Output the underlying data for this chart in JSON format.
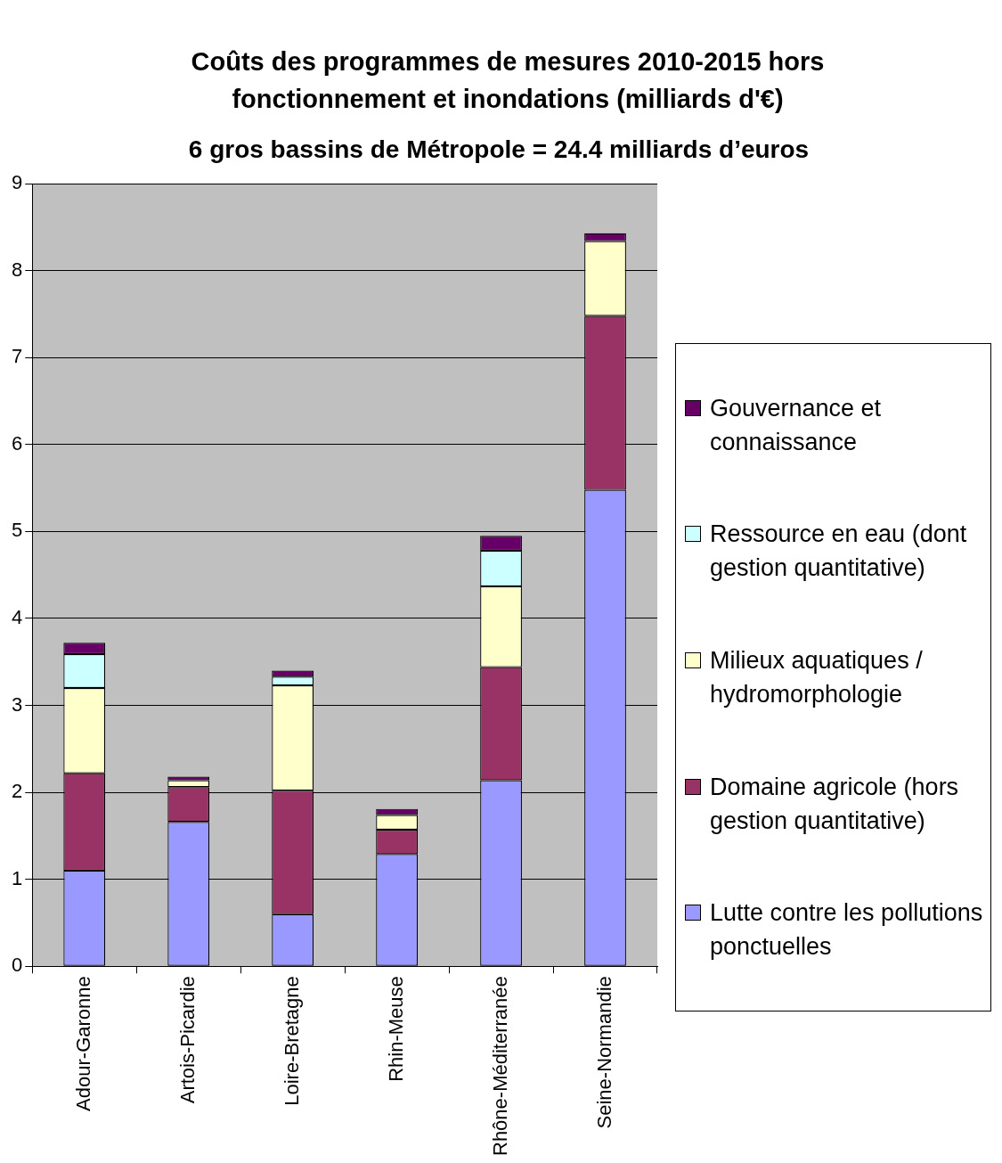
{
  "chart_data": {
    "type": "bar",
    "stacked": true,
    "title": "Coûts des programmes de mesures 2010-2015 hors fonctionnement et inondations (milliards d'€)",
    "subtitle": "6 gros bassins de Métropole  = 24.4 milliards d’euros",
    "categories": [
      "Adour-Garonne",
      "Artois-Picardie",
      "Loire-Bretagne",
      "Rhin-Meuse",
      "Rhône-Méditerranée",
      "Seine-Normandie"
    ],
    "series": [
      {
        "name": "Lutte contre les pollutions ponctuelles",
        "color": "#9999ff",
        "values": [
          1.1,
          1.66,
          0.6,
          1.29,
          2.14,
          5.48
        ]
      },
      {
        "name": "Domaine agricole (hors gestion quantitative)",
        "color": "#993366",
        "values": [
          1.12,
          0.4,
          1.42,
          0.28,
          1.3,
          2.0
        ]
      },
      {
        "name": "Milieux aquatiques / hydromorphologie",
        "color": "#ffffcc",
        "values": [
          0.98,
          0.08,
          1.21,
          0.17,
          0.93,
          0.86
        ]
      },
      {
        "name": "Ressource en eau (dont gestion quantitative)",
        "color": "#ccffff",
        "values": [
          0.39,
          0,
          0.1,
          0,
          0.41,
          0
        ]
      },
      {
        "name": "Gouvernance et connaissance",
        "color": "#660066",
        "values": [
          0.13,
          0.04,
          0.07,
          0.07,
          0.17,
          0.09
        ]
      }
    ],
    "ylim": [
      0,
      9
    ],
    "yticks": [
      0,
      1,
      2,
      3,
      4,
      5,
      6,
      7,
      8,
      9
    ],
    "grid": "y",
    "legend": "right"
  }
}
